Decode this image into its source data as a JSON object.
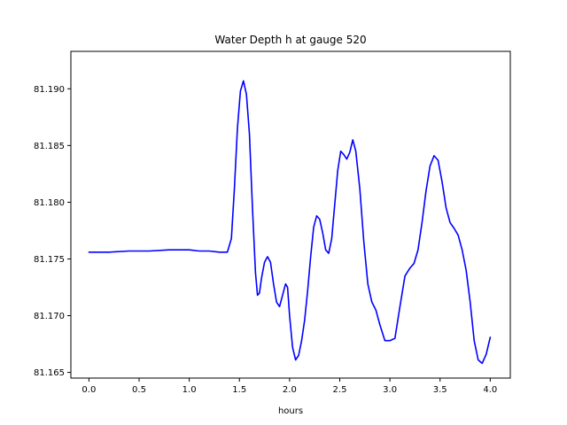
{
  "chart_data": {
    "type": "line",
    "title": "Water Depth h at gauge 520",
    "xlabel": "hours",
    "ylabel": "",
    "xlim": [
      -0.18,
      4.2
    ],
    "ylim": [
      81.1645,
      81.1933
    ],
    "xticks": [
      0.0,
      0.5,
      1.0,
      1.5,
      2.0,
      2.5,
      3.0,
      3.5,
      4.0
    ],
    "xtick_labels": [
      "0.0",
      "0.5",
      "1.0",
      "1.5",
      "2.0",
      "2.5",
      "3.0",
      "3.5",
      "4.0"
    ],
    "yticks": [
      81.165,
      81.17,
      81.175,
      81.18,
      81.185,
      81.19
    ],
    "ytick_labels": [
      "81.165",
      "81.170",
      "81.175",
      "81.180",
      "81.185",
      "81.190"
    ],
    "grid": false,
    "series_color": "#0000ff",
    "series": [
      {
        "x": [
          0.0,
          0.2,
          0.4,
          0.6,
          0.8,
          1.0,
          1.1,
          1.2,
          1.3,
          1.38,
          1.42,
          1.45,
          1.48,
          1.51,
          1.54,
          1.57,
          1.6,
          1.63,
          1.66,
          1.68,
          1.7,
          1.72,
          1.75,
          1.78,
          1.81,
          1.84,
          1.87,
          1.9,
          1.93,
          1.96,
          1.98,
          2.0,
          2.03,
          2.06,
          2.09,
          2.12,
          2.15,
          2.18,
          2.21,
          2.24,
          2.27,
          2.3,
          2.33,
          2.36,
          2.39,
          2.42,
          2.45,
          2.48,
          2.51,
          2.54,
          2.57,
          2.6,
          2.63,
          2.66,
          2.7,
          2.74,
          2.78,
          2.82,
          2.86,
          2.9,
          2.95,
          3.0,
          3.05,
          3.1,
          3.15,
          3.2,
          3.24,
          3.28,
          3.32,
          3.36,
          3.4,
          3.44,
          3.48,
          3.52,
          3.56,
          3.6,
          3.64,
          3.68,
          3.72,
          3.76,
          3.8,
          3.84,
          3.88,
          3.92,
          3.96,
          4.0
        ],
        "y": [
          81.1756,
          81.1756,
          81.1757,
          81.1757,
          81.1758,
          81.1758,
          81.1757,
          81.1757,
          81.1756,
          81.1756,
          81.1768,
          81.1812,
          81.1865,
          81.1898,
          81.1907,
          81.1895,
          81.186,
          81.1795,
          81.1738,
          81.1718,
          81.172,
          81.1733,
          81.1747,
          81.1752,
          81.1747,
          81.1728,
          81.1712,
          81.1708,
          81.1718,
          81.1728,
          81.1725,
          81.17,
          81.1672,
          81.1661,
          81.1665,
          81.1678,
          81.1696,
          81.1722,
          81.1752,
          81.1778,
          81.1788,
          81.1785,
          81.1773,
          81.1758,
          81.1755,
          81.1768,
          81.1798,
          81.1828,
          81.1845,
          81.1842,
          81.1838,
          81.1844,
          81.1855,
          81.1845,
          81.1812,
          81.1765,
          81.1728,
          81.1712,
          81.1705,
          81.1692,
          81.1678,
          81.1678,
          81.168,
          81.1708,
          81.1735,
          81.1742,
          81.1746,
          81.1758,
          81.1782,
          81.181,
          81.1832,
          81.1841,
          81.1837,
          81.1818,
          81.1795,
          81.1782,
          81.1777,
          81.1771,
          81.1758,
          81.174,
          81.1712,
          81.1678,
          81.1661,
          81.1658,
          81.1666,
          81.1681
        ]
      }
    ]
  }
}
